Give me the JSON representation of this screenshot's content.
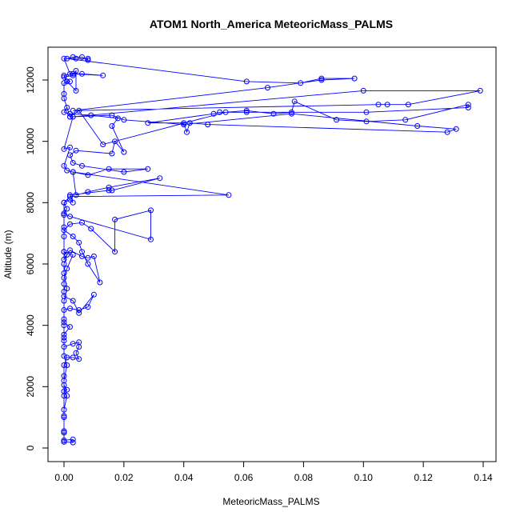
{
  "chart_data": {
    "type": "line",
    "title": "ATOM1 North_America MeteoricMass_PALMS",
    "xlabel": "MeteoricMass_PALMS",
    "ylabel": "Altitude (m)",
    "xlim": [
      0,
      0.14
    ],
    "ylim": [
      0,
      12700
    ],
    "xticks": [
      0.0,
      0.02,
      0.04,
      0.06,
      0.08,
      0.1,
      0.12,
      0.14
    ],
    "xtick_labels": [
      "0.00",
      "0.02",
      "0.04",
      "0.06",
      "0.08",
      "0.10",
      "0.12",
      "0.14"
    ],
    "yticks": [
      0,
      2000,
      4000,
      6000,
      8000,
      10000,
      12000
    ],
    "ytick_labels": [
      "0",
      "2000",
      "4000",
      "6000",
      "8000",
      "10000",
      "12000"
    ],
    "grid": false,
    "marker": "open-circle",
    "series_color": "#0000ff",
    "series": [
      {
        "points": [
          [
            0.0,
            200
          ],
          [
            0.003,
            180
          ],
          [
            0.003,
            280
          ],
          [
            0.0,
            250
          ],
          [
            0.0,
            500
          ],
          [
            0.0,
            550
          ],
          [
            0.0,
            1050
          ],
          [
            0.0,
            1250
          ],
          [
            0.001,
            1700
          ],
          [
            0.0,
            1850
          ],
          [
            0.001,
            1900
          ],
          [
            0.0,
            2050
          ],
          [
            0.0,
            2350
          ],
          [
            0.0,
            2700
          ],
          [
            0.001,
            2950
          ],
          [
            0.003,
            2950
          ],
          [
            0.005,
            2900
          ],
          [
            0.004,
            3100
          ],
          [
            0.005,
            3300
          ],
          [
            0.005,
            3450
          ],
          [
            0.003,
            3400
          ],
          [
            0.0,
            3300
          ],
          [
            0.0,
            3500
          ],
          [
            0.0,
            3700
          ],
          [
            0.002,
            3950
          ],
          [
            0.0,
            4100
          ],
          [
            0.0,
            4200
          ],
          [
            0.0,
            4500
          ],
          [
            0.002,
            4550
          ],
          [
            0.005,
            4500
          ],
          [
            0.008,
            4600
          ],
          [
            0.01,
            5000
          ],
          [
            0.005,
            4400
          ],
          [
            0.003,
            4800
          ],
          [
            0.0,
            4950
          ],
          [
            0.0,
            5100
          ],
          [
            0.0,
            5350
          ],
          [
            0.0,
            5550
          ],
          [
            0.001,
            5850
          ],
          [
            0.003,
            6300
          ],
          [
            0.0,
            6400
          ],
          [
            0.0,
            6150
          ],
          [
            0.002,
            6450
          ],
          [
            0.006,
            6250
          ],
          [
            0.008,
            6200
          ],
          [
            0.01,
            6250
          ],
          [
            0.012,
            5400
          ],
          [
            0.008,
            6000
          ],
          [
            0.006,
            6400
          ],
          [
            0.005,
            6700
          ],
          [
            0.003,
            6900
          ],
          [
            0.0,
            7100
          ],
          [
            0.002,
            7300
          ],
          [
            0.006,
            7350
          ],
          [
            0.009,
            7150
          ],
          [
            0.017,
            6400
          ],
          [
            0.017,
            7450
          ],
          [
            0.029,
            7750
          ],
          [
            0.029,
            6800
          ],
          [
            0.002,
            7550
          ],
          [
            0.0,
            7650
          ],
          [
            0.001,
            7800
          ],
          [
            0.0,
            8000
          ],
          [
            0.002,
            8100
          ],
          [
            0.003,
            8000
          ],
          [
            0.002,
            8250
          ],
          [
            0.015,
            8400
          ],
          [
            0.016,
            8400
          ],
          [
            0.032,
            8800
          ],
          [
            0.015,
            8500
          ],
          [
            0.008,
            8350
          ],
          [
            0.004,
            8250
          ],
          [
            0.003,
            9000
          ],
          [
            0.008,
            8900
          ],
          [
            0.015,
            9100
          ],
          [
            0.028,
            9100
          ],
          [
            0.02,
            9000
          ],
          [
            0.006,
            9200
          ],
          [
            0.003,
            9300
          ],
          [
            0.002,
            9550
          ],
          [
            0.004,
            9700
          ],
          [
            0.016,
            9600
          ],
          [
            0.017,
            10000
          ],
          [
            0.02,
            9650
          ],
          [
            0.016,
            10500
          ],
          [
            0.018,
            10750
          ],
          [
            0.009,
            10850
          ],
          [
            0.002,
            10900
          ],
          [
            0.0,
            10950
          ],
          [
            0.001,
            11100
          ],
          [
            0.002,
            10800
          ],
          [
            0.005,
            11000
          ],
          [
            0.013,
            9900
          ],
          [
            0.054,
            10950
          ],
          [
            0.061,
            11000
          ],
          [
            0.07,
            10900
          ],
          [
            0.076,
            10950
          ],
          [
            0.077,
            11300
          ],
          [
            0.091,
            10700
          ],
          [
            0.101,
            10650
          ],
          [
            0.114,
            10700
          ],
          [
            0.135,
            11200
          ],
          [
            0.135,
            11100
          ],
          [
            0.101,
            10950
          ],
          [
            0.061,
            10950
          ],
          [
            0.052,
            10950
          ],
          [
            0.05,
            10900
          ],
          [
            0.028,
            10600
          ],
          [
            0.04,
            10600
          ],
          [
            0.041,
            10300
          ],
          [
            0.042,
            10600
          ],
          [
            0.048,
            10550
          ],
          [
            0.128,
            10300
          ],
          [
            0.131,
            10400
          ],
          [
            0.118,
            10500
          ],
          [
            0.076,
            10900
          ],
          [
            0.04,
            10550
          ],
          [
            0.02,
            10700
          ],
          [
            0.016,
            10850
          ],
          [
            0.002,
            10800
          ],
          [
            0.0,
            11400
          ],
          [
            0.0,
            11550
          ],
          [
            0.0,
            11900
          ],
          [
            0.002,
            11950
          ],
          [
            0.0,
            12100
          ],
          [
            0.003,
            12150
          ],
          [
            0.004,
            12300
          ],
          [
            0.004,
            11650
          ],
          [
            0.001,
            11950
          ],
          [
            0.0,
            12150
          ],
          [
            0.003,
            12200
          ],
          [
            0.013,
            12150
          ],
          [
            0.006,
            12200
          ],
          [
            0.002,
            12200
          ],
          [
            0.0,
            12700
          ],
          [
            0.004,
            12700
          ],
          [
            0.008,
            12700
          ],
          [
            0.008,
            12650
          ],
          [
            0.006,
            12750
          ],
          [
            0.003,
            12750
          ],
          [
            0.001,
            12700
          ],
          [
            0.061,
            11950
          ],
          [
            0.079,
            11900
          ],
          [
            0.086,
            12050
          ],
          [
            0.097,
            12050
          ],
          [
            0.086,
            12000
          ],
          [
            0.068,
            11750
          ],
          [
            0.003,
            11000
          ],
          [
            0.105,
            11200
          ],
          [
            0.108,
            11200
          ],
          [
            0.115,
            11200
          ],
          [
            0.139,
            11650
          ],
          [
            0.1,
            11650
          ],
          [
            0.003,
            10800
          ],
          [
            0.0,
            9750
          ],
          [
            0.002,
            9800
          ],
          [
            0.0,
            9200
          ],
          [
            0.001,
            9050
          ],
          [
            0.003,
            9000
          ],
          [
            0.055,
            8250
          ],
          [
            0.002,
            8200
          ],
          [
            0.0,
            8000
          ],
          [
            0.0,
            7600
          ],
          [
            0.0,
            7200
          ],
          [
            0.0,
            6900
          ],
          [
            0.0,
            6400
          ],
          [
            0.001,
            6300
          ],
          [
            0.0,
            6000
          ],
          [
            0.0,
            5700
          ],
          [
            0.001,
            5200
          ],
          [
            0.0,
            4800
          ],
          [
            0.0,
            4000
          ],
          [
            0.0,
            3600
          ],
          [
            0.0,
            3000
          ],
          [
            0.001,
            2700
          ],
          [
            0.0,
            2200
          ],
          [
            0.0,
            1700
          ],
          [
            0.0,
            1000
          ],
          [
            0.0,
            500
          ],
          [
            0.0,
            200
          ]
        ]
      }
    ]
  }
}
